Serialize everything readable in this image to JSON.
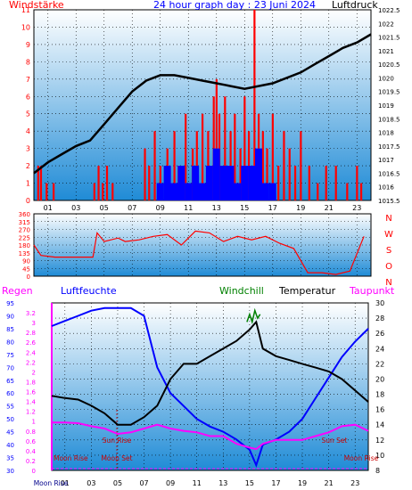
{
  "header": {
    "left_title": "Windstärke",
    "center_title": "24 hour graph day : 23 Juni 2024",
    "right_title": "Luftdruck"
  },
  "lower_header": {
    "regen": "Regen",
    "luftfeuchte": "Luftfeuchte",
    "windchill": "Windchill",
    "temperatur": "Temperatur",
    "taupunkt": "Taupunkt"
  },
  "colors": {
    "wind_bar": "#ff0000",
    "gust_bar": "#0000ff",
    "pressure": "#000000",
    "humidity": "#0000ff",
    "temperature": "#000000",
    "dewpoint": "#ff00ff",
    "windchill": "#008000",
    "rain_axis": "#ff00ff",
    "sky_top": "#ffffff",
    "sky_bottom": "#1f8bd6"
  },
  "chart_data": [
    {
      "type": "bar",
      "title": "Windstärke / Luftdruck",
      "left_axis": {
        "ylim": [
          0,
          11
        ],
        "ticks": [
          "0",
          "1",
          "2",
          "3",
          "4",
          "5",
          "6",
          "7",
          "8",
          "9",
          "10",
          "11"
        ]
      },
      "right_axis": {
        "ylim": [
          1015.5,
          1022.5
        ],
        "ticks": [
          "1015.5",
          "1016",
          "1016.5",
          "1017",
          "1017.5",
          "1018",
          "1018.5",
          "1019",
          "1019.5",
          "1020",
          "1020.5",
          "1021",
          "1021.5",
          "1022",
          "1022.5"
        ]
      },
      "x_ticks": [
        "01",
        "03",
        "05",
        "07",
        "09",
        "11",
        "13",
        "15",
        "17",
        "19",
        "21",
        "23"
      ],
      "series": [
        {
          "name": "Windstärke",
          "axis": "left",
          "hours": [
            0.3,
            0.5,
            0.9,
            1.4,
            4.3,
            4.6,
            4.9,
            5.2,
            5.6,
            7.9,
            8.2,
            8.6,
            9.0,
            9.5,
            10.0,
            10.3,
            10.8,
            11.3,
            11.6,
            12.0,
            12.4,
            12.8,
            13.0,
            13.2,
            13.6,
            14.0,
            14.3,
            14.7,
            15.0,
            15.3,
            15.7,
            16.0,
            16.3,
            16.6,
            17.0,
            17.4,
            17.8,
            18.2,
            18.6,
            19.0,
            19.6,
            20.2,
            20.8,
            21.5,
            22.3,
            23.0,
            23.3
          ],
          "values": [
            2,
            2,
            1,
            1,
            1,
            2,
            1,
            2,
            1,
            3,
            2,
            4,
            2,
            3,
            4,
            2,
            5,
            3,
            4,
            5,
            4,
            6,
            7,
            5,
            6,
            4,
            5,
            3,
            6,
            4,
            11,
            5,
            4,
            3,
            5,
            2,
            4,
            3,
            2,
            4,
            2,
            1,
            2,
            2,
            1,
            2,
            1
          ]
        },
        {
          "name": "Böen",
          "axis": "left",
          "hours": [
            9.0,
            9.5,
            10.0,
            10.5,
            11.0,
            11.5,
            12.0,
            12.5,
            13.0,
            13.5,
            14.0,
            14.5,
            15.0,
            15.5,
            16.0,
            16.5,
            17.0
          ],
          "values": [
            1,
            2,
            1,
            2,
            1,
            2,
            1,
            2,
            3,
            2,
            2,
            1,
            2,
            2,
            3,
            1,
            1
          ]
        },
        {
          "name": "Luftdruck",
          "axis": "right",
          "hours": [
            0,
            1,
            2,
            3,
            4,
            5,
            6,
            7,
            8,
            9,
            10,
            11,
            12,
            13,
            14,
            15,
            16,
            17,
            18,
            19,
            20,
            21,
            22,
            23,
            24
          ],
          "values": [
            1016.5,
            1016.9,
            1017.2,
            1017.5,
            1017.7,
            1018.3,
            1018.9,
            1019.5,
            1019.9,
            1020.1,
            1020.1,
            1020.0,
            1019.9,
            1019.8,
            1019.7,
            1019.6,
            1019.7,
            1019.8,
            1020.0,
            1020.2,
            1020.5,
            1020.8,
            1021.1,
            1021.3,
            1021.6
          ]
        }
      ]
    },
    {
      "type": "line",
      "title": "Windrichtung",
      "left_axis": {
        "ylim": [
          0,
          360
        ],
        "ticks": [
          "0",
          "45",
          "90",
          "135",
          "180",
          "225",
          "270",
          "315",
          "360"
        ]
      },
      "right_axis_labels": [
        "N",
        "W",
        "S",
        "O",
        "N"
      ],
      "series": [
        {
          "name": "Windrichtung",
          "hours": [
            0,
            0.5,
            1.5,
            3,
            4.2,
            4.5,
            5,
            6,
            6.5,
            7.5,
            8.5,
            9.5,
            10.5,
            11.5,
            12.5,
            13.5,
            14.5,
            15.5,
            16.5,
            17.5,
            18.5,
            19.5,
            20.5,
            21.5,
            22.5,
            23.5
          ],
          "values": [
            180,
            120,
            110,
            110,
            110,
            250,
            200,
            220,
            200,
            210,
            230,
            240,
            180,
            260,
            250,
            200,
            230,
            210,
            230,
            190,
            160,
            20,
            20,
            10,
            30,
            230
          ]
        }
      ]
    },
    {
      "type": "line",
      "title": "Regen / Luftfeuchte / Windchill / Temperatur / Taupunkt",
      "left_axis_rain": {
        "ylim": [
          0,
          3.4
        ],
        "ticks": [
          "0",
          "0.2",
          "0.4",
          "0.6",
          "0.8",
          "1",
          "1.2",
          "1.4",
          "1.6",
          "1.8",
          "2",
          "2.2",
          "2.4",
          "2.6",
          "2.8",
          "3",
          "3.2"
        ]
      },
      "left_axis_humidity": {
        "ylim": [
          30,
          95
        ],
        "ticks": [
          "30",
          "35",
          "40",
          "45",
          "50",
          "55",
          "60",
          "65",
          "70",
          "75",
          "80",
          "85",
          "90",
          "95"
        ]
      },
      "right_axis": {
        "ylim": [
          8,
          30
        ],
        "ticks": [
          "8",
          "10",
          "12",
          "14",
          "16",
          "18",
          "20",
          "22",
          "24",
          "26",
          "28",
          "30"
        ]
      },
      "annotations": [
        "Moon Rise",
        "Moon Set",
        "Sun Rise",
        "Sun Set",
        "Moon Rise"
      ],
      "bottom_label": "Moon Rise",
      "series": [
        {
          "name": "Luftfeuchte",
          "axis": "humidity",
          "hours": [
            0,
            1,
            2,
            3,
            4,
            5,
            6,
            7,
            8,
            9,
            10,
            11,
            12,
            13,
            14,
            15,
            15.5,
            16,
            17,
            18,
            19,
            20,
            21,
            22,
            23,
            24
          ],
          "values": [
            86,
            88,
            90,
            92,
            93,
            93,
            93,
            90,
            70,
            60,
            55,
            50,
            47,
            45,
            42,
            38,
            32,
            40,
            42,
            45,
            50,
            58,
            66,
            74,
            80,
            85
          ]
        },
        {
          "name": "Temperatur",
          "axis": "right",
          "hours": [
            0,
            1,
            2,
            3,
            4,
            5,
            6,
            7,
            8,
            9,
            10,
            11,
            12,
            13,
            14,
            15,
            15.5,
            16,
            17,
            18,
            19,
            20,
            21,
            22,
            23,
            24
          ],
          "values": [
            17.8,
            17.5,
            17.3,
            16.5,
            15.5,
            14.0,
            14.0,
            15.0,
            16.5,
            20.0,
            22.0,
            22.0,
            23.0,
            24.0,
            25.0,
            26.5,
            27.5,
            24.0,
            23.0,
            22.5,
            22.0,
            21.5,
            21.0,
            20.0,
            18.5,
            17.0
          ]
        },
        {
          "name": "Taupunkt",
          "axis": "right",
          "hours": [
            0,
            1,
            2,
            3,
            4,
            5,
            6,
            7,
            8,
            9,
            10,
            11,
            12,
            13,
            14,
            15,
            15.5,
            16,
            17,
            18,
            19,
            20,
            21,
            22,
            23,
            24
          ],
          "values": [
            14.3,
            14.3,
            14.2,
            13.8,
            13.5,
            12.8,
            13.0,
            13.5,
            14.0,
            13.5,
            13.2,
            13.0,
            12.5,
            12.5,
            11.5,
            11.0,
            10.8,
            11.5,
            12.0,
            12.0,
            12.0,
            12.5,
            13.0,
            13.8,
            14.0,
            13.2
          ]
        },
        {
          "name": "Windchill",
          "axis": "right",
          "hours": [
            14.8,
            15.0,
            15.2,
            15.4,
            15.6,
            15.8
          ],
          "values": [
            27.5,
            28.5,
            27.5,
            29.0,
            28.0,
            28.5
          ]
        }
      ]
    }
  ]
}
